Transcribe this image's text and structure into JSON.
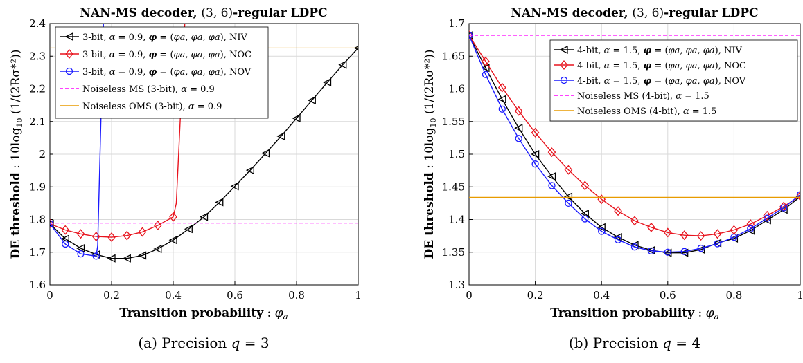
{
  "chart_data": [
    {
      "type": "line",
      "title": "NAN-MS decoder, (3, 6)-regular LDPC",
      "xlabel": "Transition probability : φa",
      "ylabel": "DE threshold : 10log10 (1/(2Rσ*²))",
      "caption": "(a) Precision q = 3",
      "xlim": [
        0,
        1
      ],
      "ylim": [
        1.6,
        2.4
      ],
      "xticks": [
        "0",
        "0.2",
        "0.4",
        "0.6",
        "0.8",
        "1"
      ],
      "yticks": [
        "1.6",
        "1.7",
        "1.8",
        "1.9",
        "2",
        "2.1",
        "2.2",
        "2.3",
        "2.4"
      ],
      "xtick_values": [
        0,
        0.2,
        0.4,
        0.6,
        0.8,
        1
      ],
      "ytick_values": [
        1.6,
        1.7,
        1.8,
        1.9,
        2.0,
        2.1,
        2.2,
        2.3,
        2.4
      ],
      "grid": true,
      "legend_position": "top-left",
      "series": [
        {
          "name": "3-bit, α = 0.9, φ = (φa, φa, φa), NIV",
          "color": "#000000",
          "marker": "triangle-left",
          "x": [
            0,
            0.05,
            0.1,
            0.15,
            0.2,
            0.25,
            0.3,
            0.35,
            0.4,
            0.45,
            0.5,
            0.55,
            0.6,
            0.65,
            0.7,
            0.75,
            0.8,
            0.85,
            0.9,
            0.95,
            1.0
          ],
          "y": [
            1.787,
            1.741,
            1.712,
            1.693,
            1.681,
            1.681,
            1.69,
            1.71,
            1.737,
            1.771,
            1.808,
            1.853,
            1.902,
            1.951,
            2.003,
            2.055,
            2.11,
            2.165,
            2.22,
            2.274,
            2.325
          ]
        },
        {
          "name": "3-bit, α = 0.9, φ = (φa, φa, φa), NOC",
          "color": "#e8141e",
          "marker": "diamond",
          "x": [
            0,
            0.05,
            0.1,
            0.15,
            0.2,
            0.25,
            0.3,
            0.35,
            0.4,
            0.41,
            0.44
          ],
          "y": [
            1.787,
            1.768,
            1.756,
            1.748,
            1.746,
            1.751,
            1.762,
            1.782,
            1.808,
            1.85,
            2.45
          ],
          "marker_count": 9
        },
        {
          "name": "3-bit, α = 0.9, φ = (φa, φa, φa), NOV",
          "color": "#1a1aff",
          "marker": "circle",
          "x": [
            0,
            0.05,
            0.1,
            0.15,
            0.155,
            0.175
          ],
          "y": [
            1.787,
            1.725,
            1.695,
            1.688,
            1.72,
            2.45
          ],
          "marker_count": 4
        },
        {
          "name": "Noiseless MS (3-bit), α = 0.9",
          "color": "#ff00ff",
          "dash": true,
          "x": [
            0,
            1
          ],
          "y": [
            1.789,
            1.789
          ]
        },
        {
          "name": "Noiseless OMS (3-bit), α = 0.9",
          "color": "#e89b00",
          "x": [
            0,
            1
          ],
          "y": [
            2.325,
            2.325
          ]
        }
      ]
    },
    {
      "type": "line",
      "title": "NAN-MS decoder, (3, 6)-regular LDPC",
      "xlabel": "Transition probability : φa",
      "ylabel": "DE threshold : 10log10 (1/(2Rσ*²))",
      "caption": "(b) Precision q = 4",
      "xlim": [
        0,
        1
      ],
      "ylim": [
        1.3,
        1.7
      ],
      "xticks": [
        "0",
        "0.2",
        "0.4",
        "0.6",
        "0.8",
        "1"
      ],
      "yticks": [
        "1.3",
        "1.35",
        "1.4",
        "1.45",
        "1.5",
        "1.55",
        "1.6",
        "1.65",
        "1.7"
      ],
      "xtick_values": [
        0,
        0.2,
        0.4,
        0.6,
        0.8,
        1
      ],
      "ytick_values": [
        1.3,
        1.35,
        1.4,
        1.45,
        1.5,
        1.55,
        1.6,
        1.65,
        1.7
      ],
      "grid": true,
      "legend_position": "top-right",
      "series": [
        {
          "name": "4-bit, α = 1.5, φ = (φa, φa, φa), NIV",
          "color": "#000000",
          "marker": "triangle-left",
          "x": [
            0,
            0.05,
            0.1,
            0.15,
            0.2,
            0.25,
            0.3,
            0.35,
            0.4,
            0.45,
            0.5,
            0.55,
            0.6,
            0.65,
            0.7,
            0.75,
            0.8,
            0.85,
            0.9,
            0.95,
            1.0
          ],
          "y": [
            1.682,
            1.632,
            1.584,
            1.54,
            1.5,
            1.466,
            1.435,
            1.409,
            1.388,
            1.373,
            1.361,
            1.353,
            1.349,
            1.349,
            1.354,
            1.364,
            1.371,
            1.383,
            1.399,
            1.415,
            1.435
          ]
        },
        {
          "name": "4-bit, α = 1.5, φ = (φa, φa, φa), NOC",
          "color": "#e8141e",
          "marker": "diamond",
          "x": [
            0,
            0.05,
            0.1,
            0.15,
            0.2,
            0.25,
            0.3,
            0.35,
            0.4,
            0.45,
            0.5,
            0.55,
            0.6,
            0.65,
            0.7,
            0.75,
            0.8,
            0.85,
            0.9,
            0.95,
            1.0
          ],
          "y": [
            1.682,
            1.642,
            1.602,
            1.566,
            1.533,
            1.503,
            1.476,
            1.452,
            1.431,
            1.413,
            1.398,
            1.388,
            1.38,
            1.376,
            1.375,
            1.378,
            1.384,
            1.393,
            1.406,
            1.42,
            1.436
          ]
        },
        {
          "name": "4-bit, α = 1.5, φ = (φa, φa, φa), NOV",
          "color": "#1a1aff",
          "marker": "circle",
          "x": [
            0,
            0.05,
            0.1,
            0.15,
            0.2,
            0.25,
            0.3,
            0.35,
            0.4,
            0.45,
            0.5,
            0.55,
            0.6,
            0.65,
            0.7,
            0.75,
            0.8,
            0.85,
            0.9,
            0.95,
            1.0
          ],
          "y": [
            1.682,
            1.622,
            1.569,
            1.524,
            1.485,
            1.452,
            1.425,
            1.401,
            1.382,
            1.369,
            1.358,
            1.352,
            1.35,
            1.351,
            1.356,
            1.363,
            1.373,
            1.386,
            1.402,
            1.418,
            1.438
          ]
        },
        {
          "name": "Noiseless MS (4-bit), α = 1.5",
          "color": "#ff00ff",
          "dash": true,
          "x": [
            0,
            1
          ],
          "y": [
            1.682,
            1.682
          ]
        },
        {
          "name": "Noiseless OMS (4-bit), α = 1.5",
          "color": "#e89b00",
          "x": [
            0,
            1
          ],
          "y": [
            1.434,
            1.434
          ]
        }
      ]
    }
  ]
}
